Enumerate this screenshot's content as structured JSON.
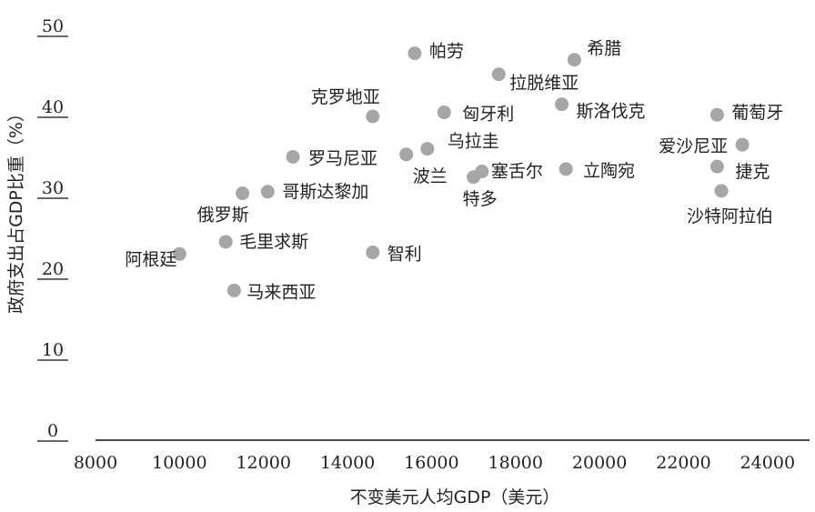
{
  "chart_data": {
    "type": "scatter",
    "xlabel": "不变美元人均GDP（美元）",
    "ylabel": "政府支出占GDP比重（%）",
    "xlim": [
      8000,
      25000
    ],
    "ylim": [
      0,
      50
    ],
    "xticks": [
      "8000",
      "10000",
      "12000",
      "14000",
      "16000",
      "18000",
      "20000",
      "22000",
      "24000"
    ],
    "yticks": [
      "0",
      "10",
      "20",
      "30",
      "40",
      "50"
    ],
    "grid": false,
    "points": [
      {
        "label": "阿根廷",
        "x": 10000,
        "y": 23.0
      },
      {
        "label": "毛里求斯",
        "x": 11100,
        "y": 24.5
      },
      {
        "label": "马来西亚",
        "x": 11300,
        "y": 18.5
      },
      {
        "label": "俄罗斯",
        "x": 11500,
        "y": 30.5
      },
      {
        "label": "哥斯达黎加",
        "x": 12100,
        "y": 30.7
      },
      {
        "label": "罗马尼亚",
        "x": 12700,
        "y": 35.0
      },
      {
        "label": "克罗地亚",
        "x": 14600,
        "y": 40.0
      },
      {
        "label": "智利",
        "x": 14600,
        "y": 23.2
      },
      {
        "label": "波兰",
        "x": 15400,
        "y": 35.3
      },
      {
        "label": "帕劳",
        "x": 15600,
        "y": 47.8
      },
      {
        "label": "乌拉圭",
        "x": 15900,
        "y": 36.0
      },
      {
        "label": "匈牙利",
        "x": 16300,
        "y": 40.5
      },
      {
        "label": "特多",
        "x": 17000,
        "y": 32.5
      },
      {
        "label": "塞舌尔",
        "x": 17200,
        "y": 33.2
      },
      {
        "label": "拉脱维亚",
        "x": 17600,
        "y": 45.2
      },
      {
        "label": "斯洛伐克",
        "x": 19100,
        "y": 41.5
      },
      {
        "label": "立陶宛",
        "x": 19200,
        "y": 33.5
      },
      {
        "label": "希腊",
        "x": 19400,
        "y": 47.0
      },
      {
        "label": "葡萄牙",
        "x": 22800,
        "y": 40.2
      },
      {
        "label": "捷克",
        "x": 22800,
        "y": 33.8
      },
      {
        "label": "沙特阿拉伯",
        "x": 22900,
        "y": 30.8
      },
      {
        "label": "爱沙尼亚",
        "x": 23400,
        "y": 36.5
      }
    ]
  }
}
